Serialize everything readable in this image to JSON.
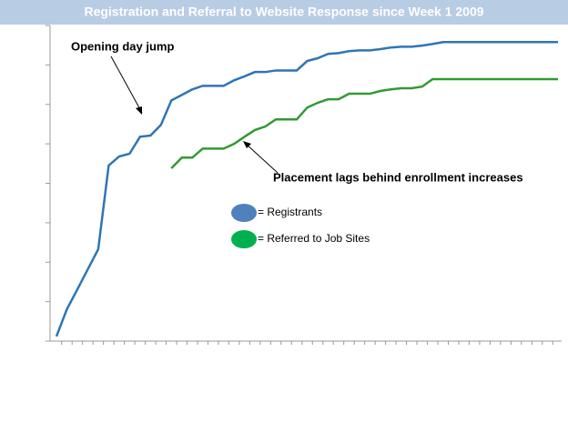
{
  "chart_data": {
    "type": "line",
    "title": "Registration and Referral to Website Response since Week 1 2009",
    "categories": [
      null,
      null,
      null,
      null,
      null,
      null,
      null,
      null,
      null,
      null,
      null,
      null,
      null,
      null,
      null,
      null,
      null,
      null,
      null,
      null,
      null,
      null,
      null,
      null,
      null,
      null,
      null,
      null,
      null,
      null,
      null,
      null,
      null,
      null,
      null,
      null,
      null,
      null,
      null,
      null,
      null,
      null,
      null,
      null,
      null,
      null,
      null,
      null,
      null
    ],
    "ylim": [
      0,
      8
    ],
    "yticks": [
      0,
      1,
      2,
      3,
      4,
      5,
      6,
      7,
      8
    ],
    "series": [
      {
        "name": "= Registrants",
        "color": "#2e75b6",
        "legend_color": "#4f81bd",
        "values": [
          0.12,
          0.81,
          1.31,
          1.82,
          2.33,
          4.45,
          4.68,
          4.75,
          5.18,
          5.21,
          5.48,
          6.1,
          6.24,
          6.38,
          6.47,
          6.47,
          6.47,
          6.61,
          6.71,
          6.82,
          6.82,
          6.86,
          6.86,
          6.86,
          7.1,
          7.17,
          7.28,
          7.3,
          7.35,
          7.37,
          7.37,
          7.4,
          7.44,
          7.46,
          7.46,
          7.49,
          7.53,
          7.58,
          7.58,
          7.58,
          7.58,
          7.58,
          7.58,
          7.58,
          7.58,
          7.58,
          7.58,
          7.58,
          7.58
        ]
      },
      {
        "name": "= Referred to Job Sites",
        "color": "#339933",
        "legend_color": "#00b050",
        "values": [
          null,
          null,
          null,
          null,
          null,
          null,
          null,
          null,
          null,
          null,
          null,
          4.38,
          4.65,
          4.65,
          4.88,
          4.88,
          4.88,
          5.0,
          5.18,
          5.35,
          5.44,
          5.62,
          5.62,
          5.62,
          5.92,
          6.04,
          6.13,
          6.13,
          6.27,
          6.27,
          6.27,
          6.34,
          6.38,
          6.41,
          6.41,
          6.45,
          6.64,
          6.64,
          6.64,
          6.64,
          6.64,
          6.64,
          6.64,
          6.64,
          6.64,
          6.64,
          6.64,
          6.64,
          6.64
        ]
      }
    ],
    "annotations": [
      "Opening day jump",
      "Placement lags behind enrollment increases"
    ]
  }
}
